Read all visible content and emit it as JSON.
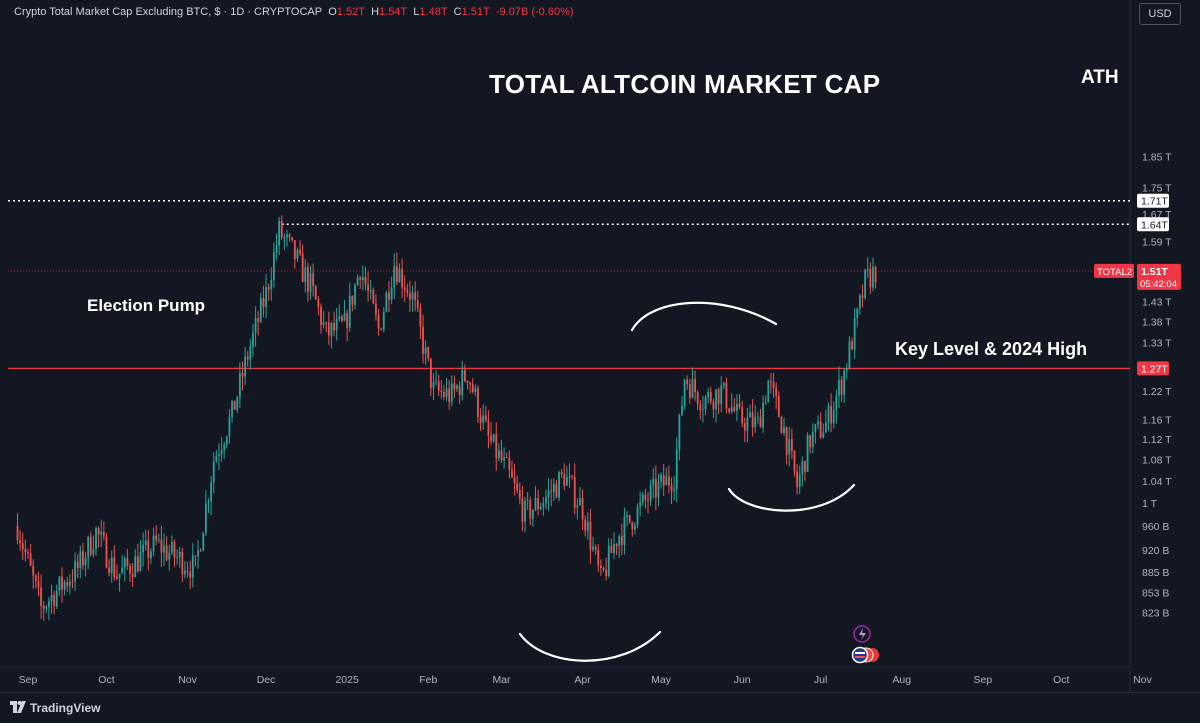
{
  "header": {
    "symbol_title": "Crypto Total Market Cap Excluding BTC, $ · 1D · CRYPTOCAP",
    "o_label": "O",
    "o_value": "1.52T",
    "h_label": "H",
    "h_value": "1.54T",
    "l_label": "L",
    "l_value": "1.48T",
    "c_label": "C",
    "c_value": "1.51T",
    "change": "-9.07B (-0.60%)",
    "currency": "USD"
  },
  "annotations": {
    "title": "TOTAL ALTCOIN MARKET CAP",
    "ath": "ATH",
    "election": "Election Pump",
    "key_level": "Key Level & 2024 High"
  },
  "price_tags": {
    "ath_level": "1.71T",
    "prev_high": "1.64T",
    "key_level": "1.27T",
    "symbol": "TOTAL2",
    "last_price": "1.51T",
    "countdown": "05:42:04"
  },
  "footer": {
    "brand": "TradingView"
  },
  "colors": {
    "up": "#26a69a",
    "down": "#ef5350",
    "level": "#f23645",
    "background": "#131722"
  },
  "chart_data": {
    "type": "candlestick",
    "y_scale": "log",
    "y_ticks": [
      {
        "value": 0.823,
        "label": "823 B"
      },
      {
        "value": 0.853,
        "label": "853 B"
      },
      {
        "value": 0.885,
        "label": "885 B"
      },
      {
        "value": 0.92,
        "label": "920 B"
      },
      {
        "value": 0.96,
        "label": "960 B"
      },
      {
        "value": 1.0,
        "label": "1 T"
      },
      {
        "value": 1.04,
        "label": "1.04 T"
      },
      {
        "value": 1.08,
        "label": "1.08 T"
      },
      {
        "value": 1.12,
        "label": "1.12 T"
      },
      {
        "value": 1.16,
        "label": "1.16 T"
      },
      {
        "value": 1.22,
        "label": "1.22 T"
      },
      {
        "value": 1.33,
        "label": "1.33 T"
      },
      {
        "value": 1.38,
        "label": "1.38 T"
      },
      {
        "value": 1.43,
        "label": "1.43 T"
      },
      {
        "value": 1.59,
        "label": "1.59 T"
      },
      {
        "value": 1.67,
        "label": "1.67 T"
      },
      {
        "value": 1.75,
        "label": "1.75 T"
      },
      {
        "value": 1.85,
        "label": "1.85 T"
      }
    ],
    "x_ticks": [
      {
        "date": "2024-09-01",
        "label": "Sep"
      },
      {
        "date": "2024-10-01",
        "label": "Oct"
      },
      {
        "date": "2024-11-01",
        "label": "Nov"
      },
      {
        "date": "2024-12-01",
        "label": "Dec"
      },
      {
        "date": "2025-01-01",
        "label": "2025"
      },
      {
        "date": "2025-02-01",
        "label": "Feb"
      },
      {
        "date": "2025-03-01",
        "label": "Mar"
      },
      {
        "date": "2025-04-01",
        "label": "Apr"
      },
      {
        "date": "2025-05-01",
        "label": "May"
      },
      {
        "date": "2025-06-01",
        "label": "Jun"
      },
      {
        "date": "2025-07-01",
        "label": "Jul"
      },
      {
        "date": "2025-08-01",
        "label": "Aug"
      },
      {
        "date": "2025-09-01",
        "label": "Sep"
      },
      {
        "date": "2025-10-01",
        "label": "Oct"
      },
      {
        "date": "2025-11-01",
        "label": "Nov"
      }
    ],
    "horizontal_levels": [
      {
        "value": 1.71,
        "style": "dotted",
        "label": "ATH"
      },
      {
        "value": 1.64,
        "style": "dotted",
        "from_date": "2024-12-07"
      },
      {
        "value": 1.27,
        "style": "solid",
        "label": "Key Level & 2024 High"
      },
      {
        "value": 1.51,
        "style": "dotted",
        "label": "TOTAL2"
      }
    ],
    "close_path": [
      {
        "date": "2024-08-28",
        "close": 0.96
      },
      {
        "date": "2024-09-06",
        "close": 0.83
      },
      {
        "date": "2024-09-13",
        "close": 0.86
      },
      {
        "date": "2024-09-20",
        "close": 0.89
      },
      {
        "date": "2024-09-27",
        "close": 0.95
      },
      {
        "date": "2024-10-05",
        "close": 0.88
      },
      {
        "date": "2024-10-12",
        "close": 0.9
      },
      {
        "date": "2024-10-20",
        "close": 0.93
      },
      {
        "date": "2024-10-27",
        "close": 0.91
      },
      {
        "date": "2024-11-04",
        "close": 0.89
      },
      {
        "date": "2024-11-11",
        "close": 1.08
      },
      {
        "date": "2024-11-18",
        "close": 1.17
      },
      {
        "date": "2024-11-24",
        "close": 1.3
      },
      {
        "date": "2024-12-01",
        "close": 1.45
      },
      {
        "date": "2024-12-06",
        "close": 1.62
      },
      {
        "date": "2024-12-12",
        "close": 1.55
      },
      {
        "date": "2024-12-18",
        "close": 1.47
      },
      {
        "date": "2024-12-24",
        "close": 1.35
      },
      {
        "date": "2024-12-31",
        "close": 1.37
      },
      {
        "date": "2025-01-06",
        "close": 1.52
      },
      {
        "date": "2025-01-13",
        "close": 1.36
      },
      {
        "date": "2025-01-19",
        "close": 1.53
      },
      {
        "date": "2025-01-26",
        "close": 1.44
      },
      {
        "date": "2025-02-03",
        "close": 1.22
      },
      {
        "date": "2025-02-10",
        "close": 1.21
      },
      {
        "date": "2025-02-16",
        "close": 1.26
      },
      {
        "date": "2025-02-24",
        "close": 1.12
      },
      {
        "date": "2025-03-03",
        "close": 1.06
      },
      {
        "date": "2025-03-10",
        "close": 0.98
      },
      {
        "date": "2025-03-18",
        "close": 1.01
      },
      {
        "date": "2025-03-25",
        "close": 1.05
      },
      {
        "date": "2025-04-01",
        "close": 0.99
      },
      {
        "date": "2025-04-08",
        "close": 0.87
      },
      {
        "date": "2025-04-14",
        "close": 0.94
      },
      {
        "date": "2025-04-21",
        "close": 0.98
      },
      {
        "date": "2025-04-28",
        "close": 1.02
      },
      {
        "date": "2025-05-06",
        "close": 1.05
      },
      {
        "date": "2025-05-10",
        "close": 1.25
      },
      {
        "date": "2025-05-17",
        "close": 1.2
      },
      {
        "date": "2025-05-24",
        "close": 1.22
      },
      {
        "date": "2025-05-31",
        "close": 1.16
      },
      {
        "date": "2025-06-07",
        "close": 1.15
      },
      {
        "date": "2025-06-11",
        "close": 1.24
      },
      {
        "date": "2025-06-17",
        "close": 1.14
      },
      {
        "date": "2025-06-22",
        "close": 1.03
      },
      {
        "date": "2025-06-27",
        "close": 1.12
      },
      {
        "date": "2025-07-03",
        "close": 1.15
      },
      {
        "date": "2025-07-09",
        "close": 1.24
      },
      {
        "date": "2025-07-14",
        "close": 1.36
      },
      {
        "date": "2025-07-18",
        "close": 1.48
      },
      {
        "date": "2025-07-22",
        "close": 1.51
      }
    ],
    "last_price": 1.51
  }
}
